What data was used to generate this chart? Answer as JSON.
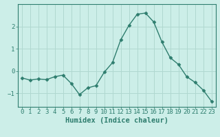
{
  "x": [
    0,
    1,
    2,
    3,
    4,
    5,
    6,
    7,
    8,
    9,
    10,
    11,
    12,
    13,
    14,
    15,
    16,
    17,
    18,
    19,
    20,
    21,
    22,
    23
  ],
  "y": [
    -0.3,
    -0.4,
    -0.35,
    -0.38,
    -0.25,
    -0.18,
    -0.55,
    -1.05,
    -0.75,
    -0.65,
    -0.05,
    0.38,
    1.4,
    2.05,
    2.55,
    2.6,
    2.2,
    1.3,
    0.6,
    0.3,
    -0.25,
    -0.5,
    -0.85,
    -1.35
  ],
  "line_color": "#2e7d6e",
  "marker": "D",
  "marker_size": 2.5,
  "bg_color": "#cceee8",
  "grid_color": "#b0d8d0",
  "xlabel": "Humidex (Indice chaleur)",
  "ylim": [
    -1.6,
    3.0
  ],
  "xlim": [
    -0.5,
    23.5
  ],
  "yticks": [
    -1,
    0,
    1,
    2
  ],
  "xtick_labels": [
    "0",
    "1",
    "2",
    "3",
    "4",
    "5",
    "6",
    "7",
    "8",
    "9",
    "10",
    "11",
    "12",
    "13",
    "14",
    "15",
    "16",
    "17",
    "18",
    "19",
    "20",
    "21",
    "22",
    "23"
  ],
  "xlabel_fontsize": 7.5,
  "tick_fontsize": 6.5,
  "line_width": 1.0
}
